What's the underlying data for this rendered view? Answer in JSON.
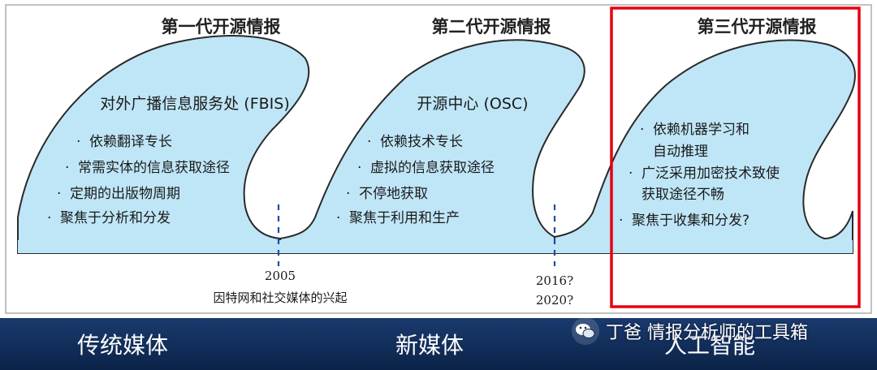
{
  "generations": [
    {
      "title": "第一代开源情报",
      "heading": "对外广播信息服务处 (FBIS)",
      "bullets": [
        "依赖翻译专长",
        "常需实体的信息获取途径",
        "定期的出版物周期",
        "聚焦于分析和分发"
      ]
    },
    {
      "title": "第二代开源情报",
      "heading": "开源中心 (OSC)",
      "bullets": [
        "依赖技术专长",
        "虚拟的信息获取途径",
        "不停地获取",
        "聚焦于利用和生产"
      ]
    },
    {
      "title": "第三代开源情报",
      "heading": "",
      "bullets": [
        "依赖机器学习和",
        "自动推理",
        "广泛采用加密技术致使",
        "获取途径不畅",
        "聚焦于收集和分发?"
      ]
    }
  ],
  "markers": [
    {
      "year": "2005",
      "note": "因特网和社交媒体的兴起"
    },
    {
      "year": "2016?",
      "year2": "2020?"
    }
  ],
  "eras": [
    "传统媒体",
    "新媒体",
    "人工智能"
  ],
  "watermark": "丁爸 情报分析师的工具箱",
  "colors": {
    "wave_fill": "#bfe6f7",
    "wave_stroke": "#2a2a2a",
    "highlight": "#e60012",
    "bar": "#0e2a52"
  }
}
